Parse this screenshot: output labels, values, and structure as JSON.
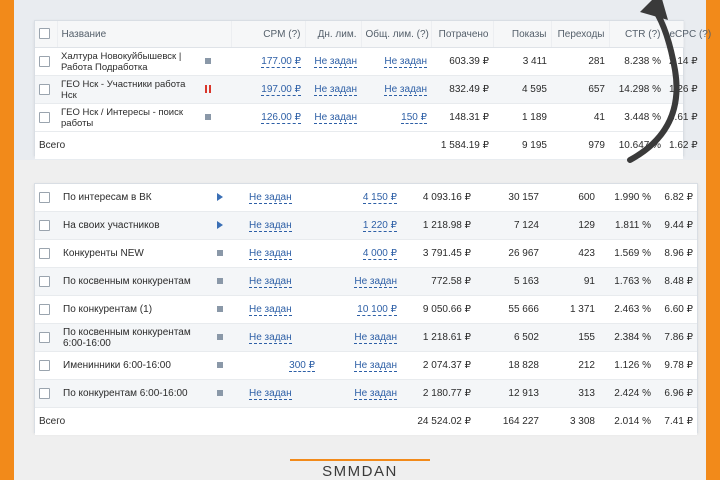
{
  "top_table": {
    "headers": {
      "name": "Название",
      "cpm": "CPM (?)",
      "daily_limit": "Дн. лим.",
      "total_limit": "Общ. лим. (?)",
      "spent": "Потрачено",
      "impressions": "Показы",
      "clicks": "Переходы",
      "ctr": "CTR (?)",
      "ecpc": "eCPC (?)"
    },
    "rows": [
      {
        "name": "Халтура Новокуйбышевск | Работа Подработка",
        "status": "stop",
        "cpm": "177.00 ₽",
        "daily_limit": "Не задан",
        "total_limit": "Не задан",
        "spent": "603.39 ₽",
        "impressions": "3 411",
        "clicks": "281",
        "ctr": "8.238 %",
        "ecpc": "2.14 ₽"
      },
      {
        "name": "ГЕО Нск - Участники работа Нск",
        "status": "pause",
        "cpm": "197.00 ₽",
        "daily_limit": "Не задан",
        "total_limit": "Не задан",
        "spent": "832.49 ₽",
        "impressions": "4 595",
        "clicks": "657",
        "ctr": "14.298 %",
        "ecpc": "1.26 ₽"
      },
      {
        "name": "ГЕО Нск / Интересы - поиск работы",
        "status": "stop",
        "cpm": "126.00 ₽",
        "daily_limit": "Не задан",
        "total_limit": "150 ₽",
        "spent": "148.31 ₽",
        "impressions": "1 189",
        "clicks": "41",
        "ctr": "3.448 %",
        "ecpc": "3.61 ₽"
      }
    ],
    "total": {
      "label": "Всего",
      "spent": "1 584.19 ₽",
      "impressions": "9 195",
      "clicks": "979",
      "ctr": "10.647 %",
      "ecpc": "1.62 ₽"
    }
  },
  "bottom_table": {
    "rows": [
      {
        "name": "По интересам в ВК",
        "status": "play",
        "daily_limit": "Не задан",
        "total_limit": "4 150 ₽",
        "spent": "4 093.16 ₽",
        "impressions": "30 157",
        "clicks": "600",
        "ctr": "1.990 %",
        "ecpc": "6.82 ₽"
      },
      {
        "name": "На своих участников",
        "status": "play",
        "daily_limit": "Не задан",
        "total_limit": "1 220 ₽",
        "spent": "1 218.98 ₽",
        "impressions": "7 124",
        "clicks": "129",
        "ctr": "1.811 %",
        "ecpc": "9.44 ₽"
      },
      {
        "name": "Конкуренты NEW",
        "status": "stop",
        "daily_limit": "Не задан",
        "total_limit": "4 000 ₽",
        "spent": "3 791.45 ₽",
        "impressions": "26 967",
        "clicks": "423",
        "ctr": "1.569 %",
        "ecpc": "8.96 ₽"
      },
      {
        "name": "По косвенным конкурентам",
        "status": "stop",
        "daily_limit": "Не задан",
        "total_limit": "Не задан",
        "spent": "772.58 ₽",
        "impressions": "5 163",
        "clicks": "91",
        "ctr": "1.763 %",
        "ecpc": "8.48 ₽"
      },
      {
        "name": "По конкурентам (1)",
        "status": "stop",
        "daily_limit": "Не задан",
        "total_limit": "10 100 ₽",
        "spent": "9 050.66 ₽",
        "impressions": "55 666",
        "clicks": "1 371",
        "ctr": "2.463 %",
        "ecpc": "6.60 ₽"
      },
      {
        "name": "По косвенным конкурентам 6:00-16:00",
        "status": "stop",
        "daily_limit": "Не задан",
        "total_limit": "Не задан",
        "spent": "1 218.61 ₽",
        "impressions": "6 502",
        "clicks": "155",
        "ctr": "2.384 %",
        "ecpc": "7.86 ₽"
      },
      {
        "name": "Именинники 6:00-16:00",
        "status": "stop",
        "daily_limit": "300 ₽",
        "total_limit": "Не задан",
        "spent": "2 074.37 ₽",
        "impressions": "18 828",
        "clicks": "212",
        "ctr": "1.126 %",
        "ecpc": "9.78 ₽"
      },
      {
        "name": "По конкурентам 6:00-16:00",
        "status": "stop",
        "daily_limit": "Не задан",
        "total_limit": "Не задан",
        "spent": "2 180.77 ₽",
        "impressions": "12 913",
        "clicks": "313",
        "ctr": "2.424 %",
        "ecpc": "6.96 ₽"
      }
    ],
    "total": {
      "label": "Всего",
      "spent": "24 524.02 ₽",
      "impressions": "164 227",
      "clicks": "3 308",
      "ctr": "2.014 %",
      "ecpc": "7.41 ₽"
    }
  },
  "brand": {
    "name": "SMMDAN"
  },
  "colors": {
    "accent": "#f28a1a",
    "link": "#2d5fa6",
    "pause": "#d9362b",
    "play": "#3a6fb5"
  }
}
